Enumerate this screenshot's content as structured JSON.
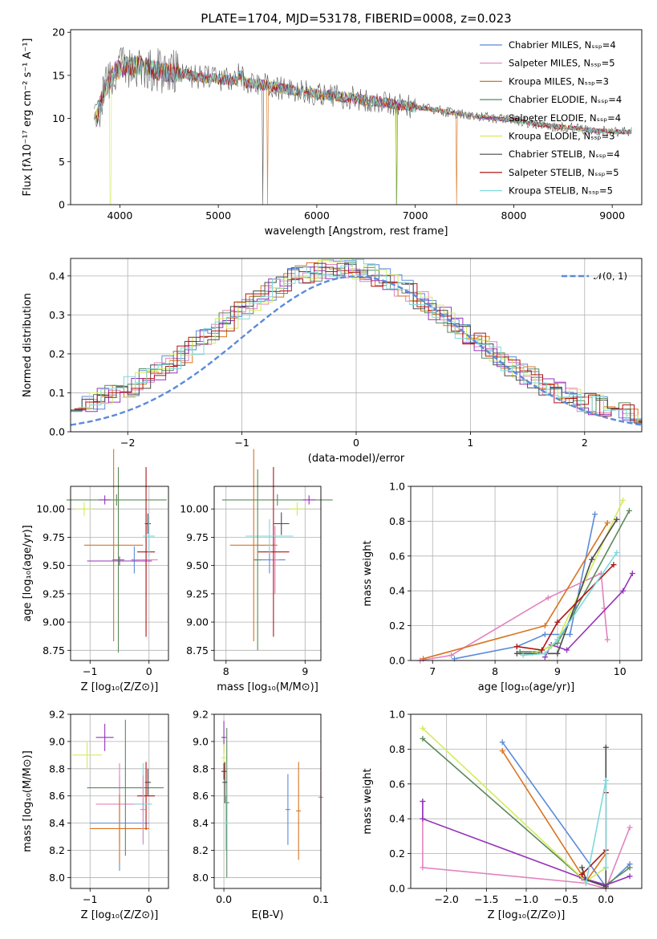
{
  "colors": {
    "chabrier_miles": "#5b8bd9",
    "salpeter_miles": "#e382bf",
    "kroupa_miles": "#d97420",
    "chabrier_elodie": "#5a8a5a",
    "salpeter_elodie": "#9533b8",
    "kroupa_elodie": "#d3ec5a",
    "chabrier_stelib": "#4a4a4a",
    "salpeter_stelib": "#b01414",
    "kroupa_stelib": "#7dd9dd"
  },
  "chart_data": [
    {
      "id": "spectrum",
      "type": "line",
      "title": "PLATE=1704, MJD=53178, FIBERID=0008, z=0.023",
      "xlabel": "wavelength [Angstrom, rest frame]",
      "ylabel": "Flux [fλ10⁻¹⁷ erg cm⁻² s⁻¹ A⁻¹]",
      "xlim": [
        3500,
        9300
      ],
      "ylim": [
        0,
        20.3
      ],
      "xticks": [
        "4000",
        "5000",
        "6000",
        "7000",
        "8000",
        "9000"
      ],
      "yticks": [
        "0",
        "5",
        "10",
        "15",
        "20"
      ],
      "grid": false,
      "legend_position": "top-right",
      "envelope": {
        "x": [
          3750,
          3850,
          3950,
          4050,
          4200,
          4400,
          4600,
          4800,
          5000,
          5200,
          5400,
          5600,
          5800,
          6000,
          6200,
          6400,
          6600,
          6800,
          7000,
          7200,
          7400,
          7600,
          7800,
          8000,
          8200,
          8400,
          8600,
          8800,
          9000,
          9200
        ],
        "y": [
          9.5,
          13.5,
          15.5,
          16.0,
          16.2,
          15.5,
          15.3,
          14.8,
          14.6,
          14.3,
          14.0,
          13.6,
          13.2,
          12.8,
          12.6,
          12.3,
          12.0,
          11.6,
          11.3,
          11.0,
          10.6,
          10.3,
          10.0,
          9.8,
          9.4,
          9.1,
          8.9,
          8.6,
          8.5,
          8.4
        ]
      },
      "series": [
        {
          "name": "Chabrier MILES, N_SSP=4",
          "color_key": "chabrier_miles"
        },
        {
          "name": "Salpeter MILES, N_SSP=5",
          "color_key": "salpeter_miles"
        },
        {
          "name": "Kroupa MILES, N_SSP=3",
          "color_key": "kroupa_miles"
        },
        {
          "name": "Chabrier ELODIE, N_SSP=4",
          "color_key": "chabrier_elodie"
        },
        {
          "name": "Salpeter ELODIE, N_SSP=4",
          "color_key": "salpeter_elodie"
        },
        {
          "name": "Kroupa ELODIE, N_SSP=3",
          "color_key": "kroupa_elodie"
        },
        {
          "name": "Chabrier STELIB, N_SSP=4",
          "color_key": "chabrier_stelib"
        },
        {
          "name": "Salpeter STELIB, N_SSP=5",
          "color_key": "salpeter_stelib"
        },
        {
          "name": "Kroupa STELIB, N_SSP=5",
          "color_key": "kroupa_stelib"
        }
      ]
    },
    {
      "id": "residuals",
      "type": "line",
      "xlabel": "(data-model)/error",
      "ylabel": "Normed distribution",
      "xlim": [
        -2.5,
        2.5
      ],
      "ylim": [
        0,
        0.445
      ],
      "xticks": [
        "−2",
        "−1",
        "0",
        "1",
        "2"
      ],
      "yticks": [
        "0.0",
        "0.1",
        "0.2",
        "0.3",
        "0.4"
      ],
      "grid": true,
      "legend_position": "top-right",
      "reference": {
        "name": "𝒩(0, 1)",
        "mean": 0,
        "sigma": 1,
        "color": "#5b8bd9"
      }
    },
    {
      "id": "age_vs_z",
      "type": "scatter",
      "xlabel": "Z [log₁₀(Z/Z⊙)]",
      "ylabel": "age  [log₁₀(age/yr)]",
      "xlim": [
        -1.33,
        0.33
      ],
      "ylim": [
        8.66,
        10.2
      ],
      "xticks": [
        "−1",
        "0"
      ],
      "yticks": [
        "8.75",
        "9.00",
        "9.25",
        "9.50",
        "9.75",
        "10.00"
      ],
      "grid": true,
      "points": [
        {
          "key": "chabrier_miles",
          "x": -0.25,
          "y": 9.55,
          "xerr": 0.05,
          "yerr": 0.12
        },
        {
          "key": "salpeter_miles",
          "x": -0.05,
          "y": 9.55,
          "xerr": 0.2,
          "yerr": 0.32
        },
        {
          "key": "kroupa_miles",
          "x": -0.6,
          "y": 9.68,
          "xerr": 0.5,
          "yerr": 0.85
        },
        {
          "key": "chabrier_elodie",
          "x": -0.55,
          "y": 10.08,
          "xerr": 0.85,
          "yerr": 0.05
        },
        {
          "key": "salpeter_elodie",
          "x": -0.75,
          "y": 10.08,
          "xerr": 0.1,
          "yerr": 0.04
        },
        {
          "key": "kroupa_elodie",
          "x": -1.1,
          "y": 10.0,
          "xerr": 0.15,
          "yerr": 0.06
        },
        {
          "key": "chabrier_stelib",
          "x": -0.02,
          "y": 9.87,
          "xerr": 0.05,
          "yerr": 0.09
        },
        {
          "key": "salpeter_stelib",
          "x": -0.05,
          "y": 9.62,
          "xerr": 0.15,
          "yerr": 0.75
        },
        {
          "key": "kroupa_stelib",
          "x": 0.0,
          "y": 9.76,
          "xerr": 0.1,
          "yerr": 0.18
        },
        {
          "key": "chabrier_elodie",
          "x": -0.52,
          "y": 9.55,
          "xerr": 0.1,
          "yerr": 0.82
        },
        {
          "key": "salpeter_elodie",
          "x": -0.5,
          "y": 9.54,
          "xerr": 0.55,
          "yerr": 0.04
        }
      ]
    },
    {
      "id": "age_vs_mass",
      "type": "scatter",
      "xlabel": "mass [log₁₀(M/M⊙)]",
      "ylabel": "",
      "xlim": [
        7.85,
        9.2
      ],
      "ylim": [
        8.66,
        10.2
      ],
      "xticks": [
        "8",
        "9"
      ],
      "yticks": [
        "8.75",
        "9.00",
        "9.25",
        "9.50",
        "9.75",
        "10.00"
      ],
      "grid": true,
      "points": [
        {
          "key": "chabrier_miles",
          "x": 8.55,
          "y": 9.55,
          "xerr": 0.2,
          "yerr": 0.12
        },
        {
          "key": "salpeter_miles",
          "x": 8.62,
          "y": 9.55,
          "xerr": 0.05,
          "yerr": 0.3
        },
        {
          "key": "kroupa_miles",
          "x": 8.35,
          "y": 9.68,
          "xerr": 0.3,
          "yerr": 0.85
        },
        {
          "key": "chabrier_elodie",
          "x": 8.65,
          "y": 10.08,
          "xerr": 0.7,
          "yerr": 0.05
        },
        {
          "key": "salpeter_elodie",
          "x": 9.05,
          "y": 10.08,
          "xerr": 0.08,
          "yerr": 0.04
        },
        {
          "key": "kroupa_elodie",
          "x": 8.9,
          "y": 10.0,
          "xerr": 0.1,
          "yerr": 0.06
        },
        {
          "key": "chabrier_stelib",
          "x": 8.7,
          "y": 9.87,
          "xerr": 0.1,
          "yerr": 0.1
        },
        {
          "key": "salpeter_stelib",
          "x": 8.6,
          "y": 9.62,
          "xerr": 0.2,
          "yerr": 0.75
        },
        {
          "key": "kroupa_stelib",
          "x": 8.55,
          "y": 9.76,
          "xerr": 0.3,
          "yerr": 0.15
        },
        {
          "key": "chabrier_elodie",
          "x": 8.4,
          "y": 9.55,
          "xerr": 0.05,
          "yerr": 0.8
        }
      ]
    },
    {
      "id": "weight_vs_age",
      "type": "line",
      "xlabel": "age  [log₁₀(age/yr)]",
      "ylabel": "mass weight",
      "xlim": [
        6.65,
        10.35
      ],
      "ylim": [
        0,
        1.0
      ],
      "xticks": [
        "7",
        "8",
        "9",
        "10"
      ],
      "yticks": [
        "0.0",
        "0.2",
        "0.4",
        "0.6",
        "0.8",
        "1.0"
      ],
      "grid": true,
      "series": [
        {
          "key": "chabrier_miles",
          "x": [
            7.35,
            8.35,
            8.8,
            9.2,
            9.6
          ],
          "y": [
            0.01,
            0.08,
            0.15,
            0.15,
            0.84
          ]
        },
        {
          "key": "salpeter_miles",
          "x": [
            6.8,
            7.3,
            8.85,
            9.7,
            9.75,
            9.8
          ],
          "y": [
            0.0,
            0.03,
            0.36,
            0.5,
            0.3,
            0.12
          ]
        },
        {
          "key": "kroupa_miles",
          "x": [
            6.85,
            8.8,
            9.8
          ],
          "y": [
            0.01,
            0.2,
            0.79
          ]
        },
        {
          "key": "chabrier_elodie",
          "x": [
            8.4,
            8.7,
            9.0,
            10.15
          ],
          "y": [
            0.05,
            0.05,
            0.1,
            0.86
          ]
        },
        {
          "key": "salpeter_elodie",
          "x": [
            8.8,
            8.9,
            9.15,
            10.05,
            10.2
          ],
          "y": [
            0.02,
            0.09,
            0.06,
            0.4,
            0.5
          ]
        },
        {
          "key": "kroupa_elodie",
          "x": [
            8.6,
            8.9,
            9.0,
            10.05
          ],
          "y": [
            0.04,
            0.08,
            0.12,
            0.92
          ]
        },
        {
          "key": "chabrier_stelib",
          "x": [
            8.35,
            9.0,
            9.55,
            9.95
          ],
          "y": [
            0.04,
            0.04,
            0.58,
            0.81
          ]
        },
        {
          "key": "salpeter_stelib",
          "x": [
            8.35,
            8.75,
            9.0,
            9.9
          ],
          "y": [
            0.08,
            0.06,
            0.22,
            0.55
          ]
        },
        {
          "key": "kroupa_stelib",
          "x": [
            8.45,
            8.8,
            9.0,
            9.95
          ],
          "y": [
            0.03,
            0.04,
            0.12,
            0.62
          ]
        }
      ]
    },
    {
      "id": "mass_vs_z",
      "type": "scatter",
      "xlabel": "Z [log₁₀(Z/Z⊙)]",
      "ylabel": "mass [log₁₀(M/M⊙)]",
      "xlim": [
        -1.33,
        0.33
      ],
      "ylim": [
        7.92,
        9.2
      ],
      "xticks": [
        "−1",
        "0"
      ],
      "yticks": [
        "8.0",
        "8.2",
        "8.4",
        "8.6",
        "8.8",
        "9.0",
        "9.2"
      ],
      "grid": true,
      "points": [
        {
          "key": "chabrier_miles",
          "x": -0.5,
          "y": 8.4,
          "xerr": 0.5,
          "yerr": 0.35
        },
        {
          "key": "salpeter_miles",
          "x": -0.5,
          "y": 8.54,
          "xerr": 0.4,
          "yerr": 0.3
        },
        {
          "key": "kroupa_miles",
          "x": -0.5,
          "y": 8.36,
          "xerr": 0.5,
          "yerr": 0.25
        },
        {
          "key": "chabrier_elodie",
          "x": -0.4,
          "y": 8.66,
          "xerr": 0.65,
          "yerr": 0.5
        },
        {
          "key": "salpeter_elodie",
          "x": -0.75,
          "y": 9.03,
          "xerr": 0.15,
          "yerr": 0.1
        },
        {
          "key": "kroupa_elodie",
          "x": -1.05,
          "y": 8.9,
          "xerr": 0.25,
          "yerr": 0.1
        },
        {
          "key": "chabrier_stelib",
          "x": -0.02,
          "y": 8.7,
          "xerr": 0.05,
          "yerr": 0.1
        },
        {
          "key": "salpeter_stelib",
          "x": -0.05,
          "y": 8.6,
          "xerr": 0.15,
          "yerr": 0.25
        },
        {
          "key": "kroupa_stelib",
          "x": -0.1,
          "y": 8.54,
          "xerr": 0.15,
          "yerr": 0.3
        },
        {
          "key": "salpeter_miles",
          "x": -0.1,
          "y": 8.5,
          "xerr": 0.05,
          "yerr": 0.25
        }
      ]
    },
    {
      "id": "mass_vs_ebv",
      "type": "scatter",
      "xlabel": "E(B-V)",
      "ylabel": "",
      "xlim": [
        -0.01,
        0.1
      ],
      "ylim": [
        7.92,
        9.2
      ],
      "xticks": [
        "0.0",
        "0.1"
      ],
      "yticks": [
        "8.0",
        "8.2",
        "8.4",
        "8.6",
        "8.8",
        "9.0",
        "9.2"
      ],
      "grid": true,
      "points": [
        {
          "key": "chabrier_miles",
          "x": 0.066,
          "y": 8.5,
          "xerr": 0,
          "yerr": 0.26
        },
        {
          "key": "kroupa_miles",
          "x": 0.077,
          "y": 8.49,
          "xerr": 0,
          "yerr": 0.36
        },
        {
          "key": "salpeter_miles",
          "x": 0.1,
          "y": 8.59,
          "xerr": 0,
          "yerr": 0.19
        },
        {
          "key": "chabrier_elodie",
          "x": 0.003,
          "y": 8.55,
          "xerr": 0,
          "yerr": 0.55
        },
        {
          "key": "salpeter_elodie",
          "x": 0.0,
          "y": 9.03,
          "xerr": 0,
          "yerr": 0.12
        },
        {
          "key": "kroupa_elodie",
          "x": 0.0,
          "y": 8.88,
          "xerr": 0,
          "yerr": 0.1
        },
        {
          "key": "chabrier_stelib",
          "x": 0.001,
          "y": 8.7,
          "xerr": 0,
          "yerr": 0.15
        },
        {
          "key": "salpeter_stelib",
          "x": 0.0,
          "y": 8.78,
          "xerr": 0,
          "yerr": 0.06
        },
        {
          "key": "kroupa_stelib",
          "x": 0.002,
          "y": 8.4,
          "xerr": 0,
          "yerr": 0.2
        }
      ]
    },
    {
      "id": "weight_vs_z",
      "type": "line",
      "xlabel": "Z [log₁₀(Z/Z⊙)]",
      "ylabel": "mass weight",
      "xlim": [
        -2.45,
        0.45
      ],
      "ylim": [
        0,
        1.0
      ],
      "xticks": [
        "−2.0",
        "−1.5",
        "−1.0",
        "−0.5",
        "0.0"
      ],
      "yticks": [
        "0.0",
        "0.2",
        "0.4",
        "0.6",
        "0.8",
        "1.0"
      ],
      "grid": true,
      "series": [
        {
          "key": "chabrier_miles",
          "x": [
            -1.3,
            0.0,
            0.3
          ],
          "y": [
            0.84,
            0.01,
            0.14
          ]
        },
        {
          "key": "salpeter_miles",
          "x": [
            -2.3,
            -2.3,
            -0.25,
            0.0,
            0.3
          ],
          "y": [
            0.5,
            0.12,
            0.03,
            0.0,
            0.35
          ]
        },
        {
          "key": "kroupa_miles",
          "x": [
            -1.3,
            -0.25,
            0.0
          ],
          "y": [
            0.79,
            0.04,
            0.2
          ]
        },
        {
          "key": "chabrier_elodie",
          "x": [
            -2.3,
            -0.3,
            0.0,
            0.3
          ],
          "y": [
            0.86,
            0.06,
            0.02,
            0.12
          ]
        },
        {
          "key": "salpeter_elodie",
          "x": [
            -2.3,
            -2.3,
            -0.3,
            0.0,
            0.3
          ],
          "y": [
            0.5,
            0.4,
            0.06,
            0.02,
            0.07
          ]
        },
        {
          "key": "kroupa_elodie",
          "x": [
            -2.3,
            -0.25,
            0.0
          ],
          "y": [
            0.92,
            0.04,
            0.12
          ]
        },
        {
          "key": "chabrier_stelib",
          "x": [
            -0.3,
            -0.25,
            0.0,
            0.0
          ],
          "y": [
            0.12,
            0.05,
            0.01,
            0.81
          ]
        },
        {
          "key": "salpeter_stelib",
          "x": [
            -0.3,
            0.0,
            0.0
          ],
          "y": [
            0.08,
            0.22,
            0.55
          ]
        },
        {
          "key": "kroupa_stelib",
          "x": [
            -0.25,
            0.0,
            0.0
          ],
          "y": [
            0.03,
            0.62,
            0.12
          ]
        }
      ]
    }
  ]
}
